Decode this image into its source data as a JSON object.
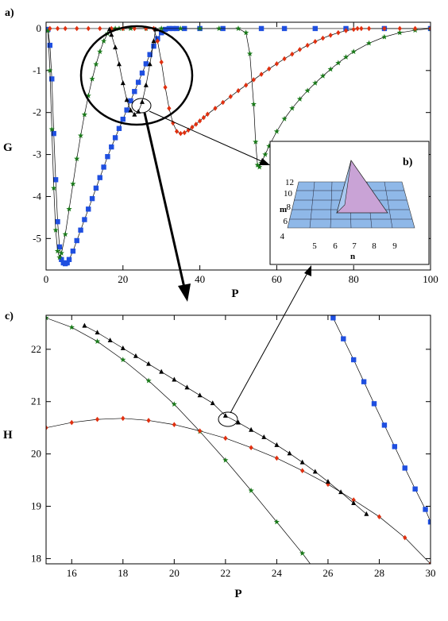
{
  "chart_data": [
    {
      "panel": "a)",
      "type": "line",
      "xlabel": "P",
      "ylabel": "G",
      "xlim": [
        0,
        100
      ],
      "ylim": [
        -5.75,
        0.15
      ],
      "xticks": [
        0,
        20,
        40,
        60,
        80,
        100
      ],
      "yticks": [
        0,
        -1,
        -2,
        -3,
        -4,
        -5
      ],
      "colors": {
        "blue": "#1f4fe0",
        "green": "#1a7a1a",
        "red": "#e03010",
        "black": "#000000"
      },
      "series": [
        {
          "color": "blue",
          "marker": "square",
          "x": [
            0.5,
            1,
            1.5,
            2,
            2.5,
            3,
            3.5,
            4,
            4.5,
            5,
            5.5,
            6,
            7,
            8,
            9,
            10,
            11,
            12,
            13,
            14,
            15,
            16,
            17,
            18,
            19,
            20,
            21,
            22,
            23,
            24,
            25,
            26,
            27,
            28,
            29,
            30,
            31,
            32,
            33,
            34,
            36,
            40,
            46,
            56,
            62,
            70,
            78,
            88,
            100
          ],
          "y": [
            -0.02,
            -0.4,
            -1.2,
            -2.5,
            -3.6,
            -4.6,
            -5.2,
            -5.5,
            -5.58,
            -5.6,
            -5.58,
            -5.5,
            -5.3,
            -5.05,
            -4.8,
            -4.55,
            -4.3,
            -4.05,
            -3.8,
            -3.55,
            -3.3,
            -3.05,
            -2.82,
            -2.6,
            -2.38,
            -2.16,
            -1.94,
            -1.72,
            -1.5,
            -1.28,
            -1.06,
            -0.84,
            -0.62,
            -0.42,
            -0.24,
            -0.1,
            -0.02,
            0,
            0,
            0,
            0,
            0,
            0,
            0,
            0,
            0,
            0,
            0,
            0
          ]
        },
        {
          "color": "green",
          "marker": "star",
          "x": [
            0.5,
            1,
            1.5,
            2,
            2.5,
            3,
            3.5,
            4,
            5,
            6,
            7,
            8,
            9,
            10,
            11,
            12,
            13,
            14,
            15,
            16,
            17,
            18,
            19,
            20,
            22,
            26,
            30,
            35,
            40,
            45,
            50,
            52,
            53,
            54,
            54.5,
            55,
            55.5,
            56,
            57,
            58,
            60,
            62,
            64,
            66,
            68,
            70,
            72,
            74,
            76,
            78,
            80,
            84,
            88,
            92,
            96,
            100
          ],
          "y": [
            -0.05,
            -1.0,
            -2.4,
            -3.8,
            -4.8,
            -5.3,
            -5.45,
            -5.35,
            -4.9,
            -4.3,
            -3.7,
            -3.1,
            -2.55,
            -2.05,
            -1.6,
            -1.2,
            -0.85,
            -0.55,
            -0.3,
            -0.12,
            -0.03,
            0,
            0,
            0,
            0,
            0,
            0,
            0,
            0,
            0,
            0,
            -0.1,
            -0.6,
            -1.8,
            -2.7,
            -3.25,
            -3.3,
            -3.2,
            -3.0,
            -2.8,
            -2.45,
            -2.15,
            -1.9,
            -1.68,
            -1.48,
            -1.3,
            -1.13,
            -0.97,
            -0.82,
            -0.68,
            -0.55,
            -0.35,
            -0.2,
            -0.1,
            -0.04,
            0
          ]
        },
        {
          "color": "red",
          "marker": "diamond",
          "x": [
            1,
            3,
            5,
            8,
            11,
            14,
            17,
            20,
            23,
            26,
            28,
            29,
            30,
            31,
            32,
            33,
            34,
            35,
            36,
            37,
            38,
            39,
            40,
            41,
            42,
            44,
            46,
            48,
            50,
            52,
            54,
            56,
            58,
            60,
            62,
            64,
            66,
            68,
            70,
            72,
            74,
            76,
            78,
            80,
            81,
            82,
            84,
            88,
            92,
            96,
            100
          ],
          "y": [
            0,
            0,
            0,
            0,
            0,
            0,
            0,
            0,
            0,
            0,
            0,
            -0.3,
            -0.8,
            -1.4,
            -1.9,
            -2.25,
            -2.45,
            -2.5,
            -2.48,
            -2.42,
            -2.35,
            -2.28,
            -2.2,
            -2.12,
            -2.04,
            -1.9,
            -1.76,
            -1.62,
            -1.48,
            -1.35,
            -1.22,
            -1.09,
            -0.96,
            -0.84,
            -0.72,
            -0.61,
            -0.5,
            -0.4,
            -0.31,
            -0.23,
            -0.16,
            -0.1,
            -0.05,
            -0.02,
            0,
            0,
            0,
            0,
            0,
            0,
            0
          ]
        },
        {
          "color": "black",
          "marker": "triangle",
          "x": [
            16.5,
            17,
            18,
            19,
            20,
            21,
            22,
            23,
            24,
            25,
            26,
            27,
            28,
            28.5
          ],
          "y": [
            -0.02,
            -0.15,
            -0.45,
            -0.85,
            -1.3,
            -1.7,
            -1.95,
            -2.05,
            -1.98,
            -1.75,
            -1.35,
            -0.85,
            -0.3,
            -0.02
          ]
        }
      ]
    },
    {
      "panel": "b)",
      "type": "surface",
      "xlabel": "n",
      "ylabel": "m",
      "xticks": [
        "5",
        "6",
        "7",
        "8",
        "9"
      ],
      "yticks": [
        "4",
        "6",
        "8",
        "10",
        "12"
      ],
      "surface_color": "#8fb8e8",
      "peak_color": "#c9a3d6"
    },
    {
      "panel": "c)",
      "type": "line",
      "xlabel": "P",
      "ylabel": "H",
      "xlim": [
        15,
        30
      ],
      "ylim": [
        17.9,
        22.65
      ],
      "xticks": [
        16,
        18,
        20,
        22,
        24,
        26,
        28,
        30
      ],
      "yticks": [
        18,
        19,
        20,
        21,
        22
      ],
      "series": [
        {
          "color": "green",
          "marker": "star",
          "x": [
            15,
            16,
            17,
            18,
            19,
            20,
            21,
            22,
            23,
            24,
            25,
            26
          ],
          "y": [
            22.6,
            22.42,
            22.15,
            21.8,
            21.4,
            20.95,
            20.43,
            19.88,
            19.3,
            18.7,
            18.1,
            17.45
          ]
        },
        {
          "color": "red",
          "marker": "diamond",
          "x": [
            15,
            16,
            17,
            18,
            19,
            20,
            21,
            22,
            23,
            24,
            25,
            26,
            27,
            28,
            29,
            30
          ],
          "y": [
            20.5,
            20.6,
            20.66,
            20.68,
            20.64,
            20.56,
            20.44,
            20.3,
            20.12,
            19.92,
            19.68,
            19.42,
            19.12,
            18.8,
            18.4,
            17.9
          ]
        },
        {
          "color": "black",
          "marker": "triangle",
          "x": [
            16.5,
            17,
            17.5,
            18,
            18.5,
            19,
            19.5,
            20,
            20.5,
            21,
            21.5,
            22,
            22.5,
            23,
            23.5,
            24,
            24.5,
            25,
            25.5,
            26,
            26.5,
            27,
            27.5
          ],
          "y": [
            22.45,
            22.32,
            22.17,
            22.02,
            21.87,
            21.72,
            21.57,
            21.42,
            21.27,
            21.12,
            20.97,
            20.73,
            20.6,
            20.46,
            20.32,
            20.17,
            20.01,
            19.84,
            19.66,
            19.47,
            19.27,
            19.06,
            18.85
          ]
        },
        {
          "color": "blue",
          "marker": "square",
          "x": [
            26.2,
            26.6,
            27,
            27.4,
            27.8,
            28.2,
            28.6,
            29,
            29.4,
            29.8,
            30
          ],
          "y": [
            22.6,
            22.2,
            21.8,
            21.38,
            20.96,
            20.55,
            20.14,
            19.73,
            19.33,
            18.94,
            18.7
          ]
        }
      ]
    }
  ]
}
